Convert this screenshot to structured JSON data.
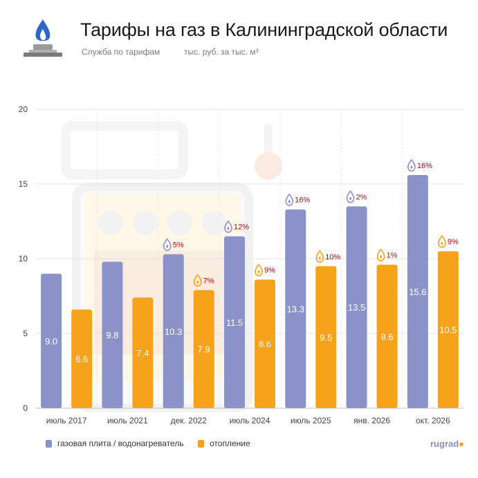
{
  "header": {
    "title": "Тарифы на газ в Калининградской области",
    "source": "Служба по тарифам",
    "unit_note": "тыс. руб. за тыс. м³"
  },
  "brand": {
    "name": "rugrad",
    "dot": "●"
  },
  "colors": {
    "stove": "#8b92c8",
    "heating": "#f7a21b",
    "pct_text": "#c00018",
    "axis_text": "#444444",
    "grid": "#e3e3e3"
  },
  "chart_data": {
    "type": "bar",
    "title": "Тарифы на газ в Калининградской области",
    "xlabel": "",
    "ylabel": "",
    "ylim": [
      0,
      20
    ],
    "yticks": [
      0,
      5,
      10,
      15,
      20
    ],
    "grid": true,
    "legend_position": "bottom-left",
    "categories": [
      "июль 2017",
      "июль 2021",
      "дек. 2022",
      "июль 2024",
      "июль 2025",
      "янв. 2026",
      "окт. 2026"
    ],
    "series": [
      {
        "name": "газовая плита / водонагреватель",
        "values": [
          9.0,
          9.8,
          10.3,
          11.5,
          13.3,
          13.5,
          15.6
        ],
        "value_labels": [
          "9.0",
          "9.8",
          "10.3",
          "11.5",
          "13.3",
          "13.5",
          "15.6"
        ],
        "growth_labels": [
          null,
          null,
          "5%",
          "12%",
          "16%",
          "2%",
          "16%"
        ]
      },
      {
        "name": "отопление",
        "values": [
          6.6,
          7.4,
          7.9,
          8.6,
          9.5,
          9.6,
          10.5
        ],
        "value_labels": [
          "6.6",
          "7.4",
          "7.9",
          "8.6",
          "9.5",
          "9.6",
          "10.5"
        ],
        "growth_labels": [
          null,
          null,
          "7%",
          "9%",
          "10%",
          "1%",
          "9%"
        ]
      }
    ]
  }
}
